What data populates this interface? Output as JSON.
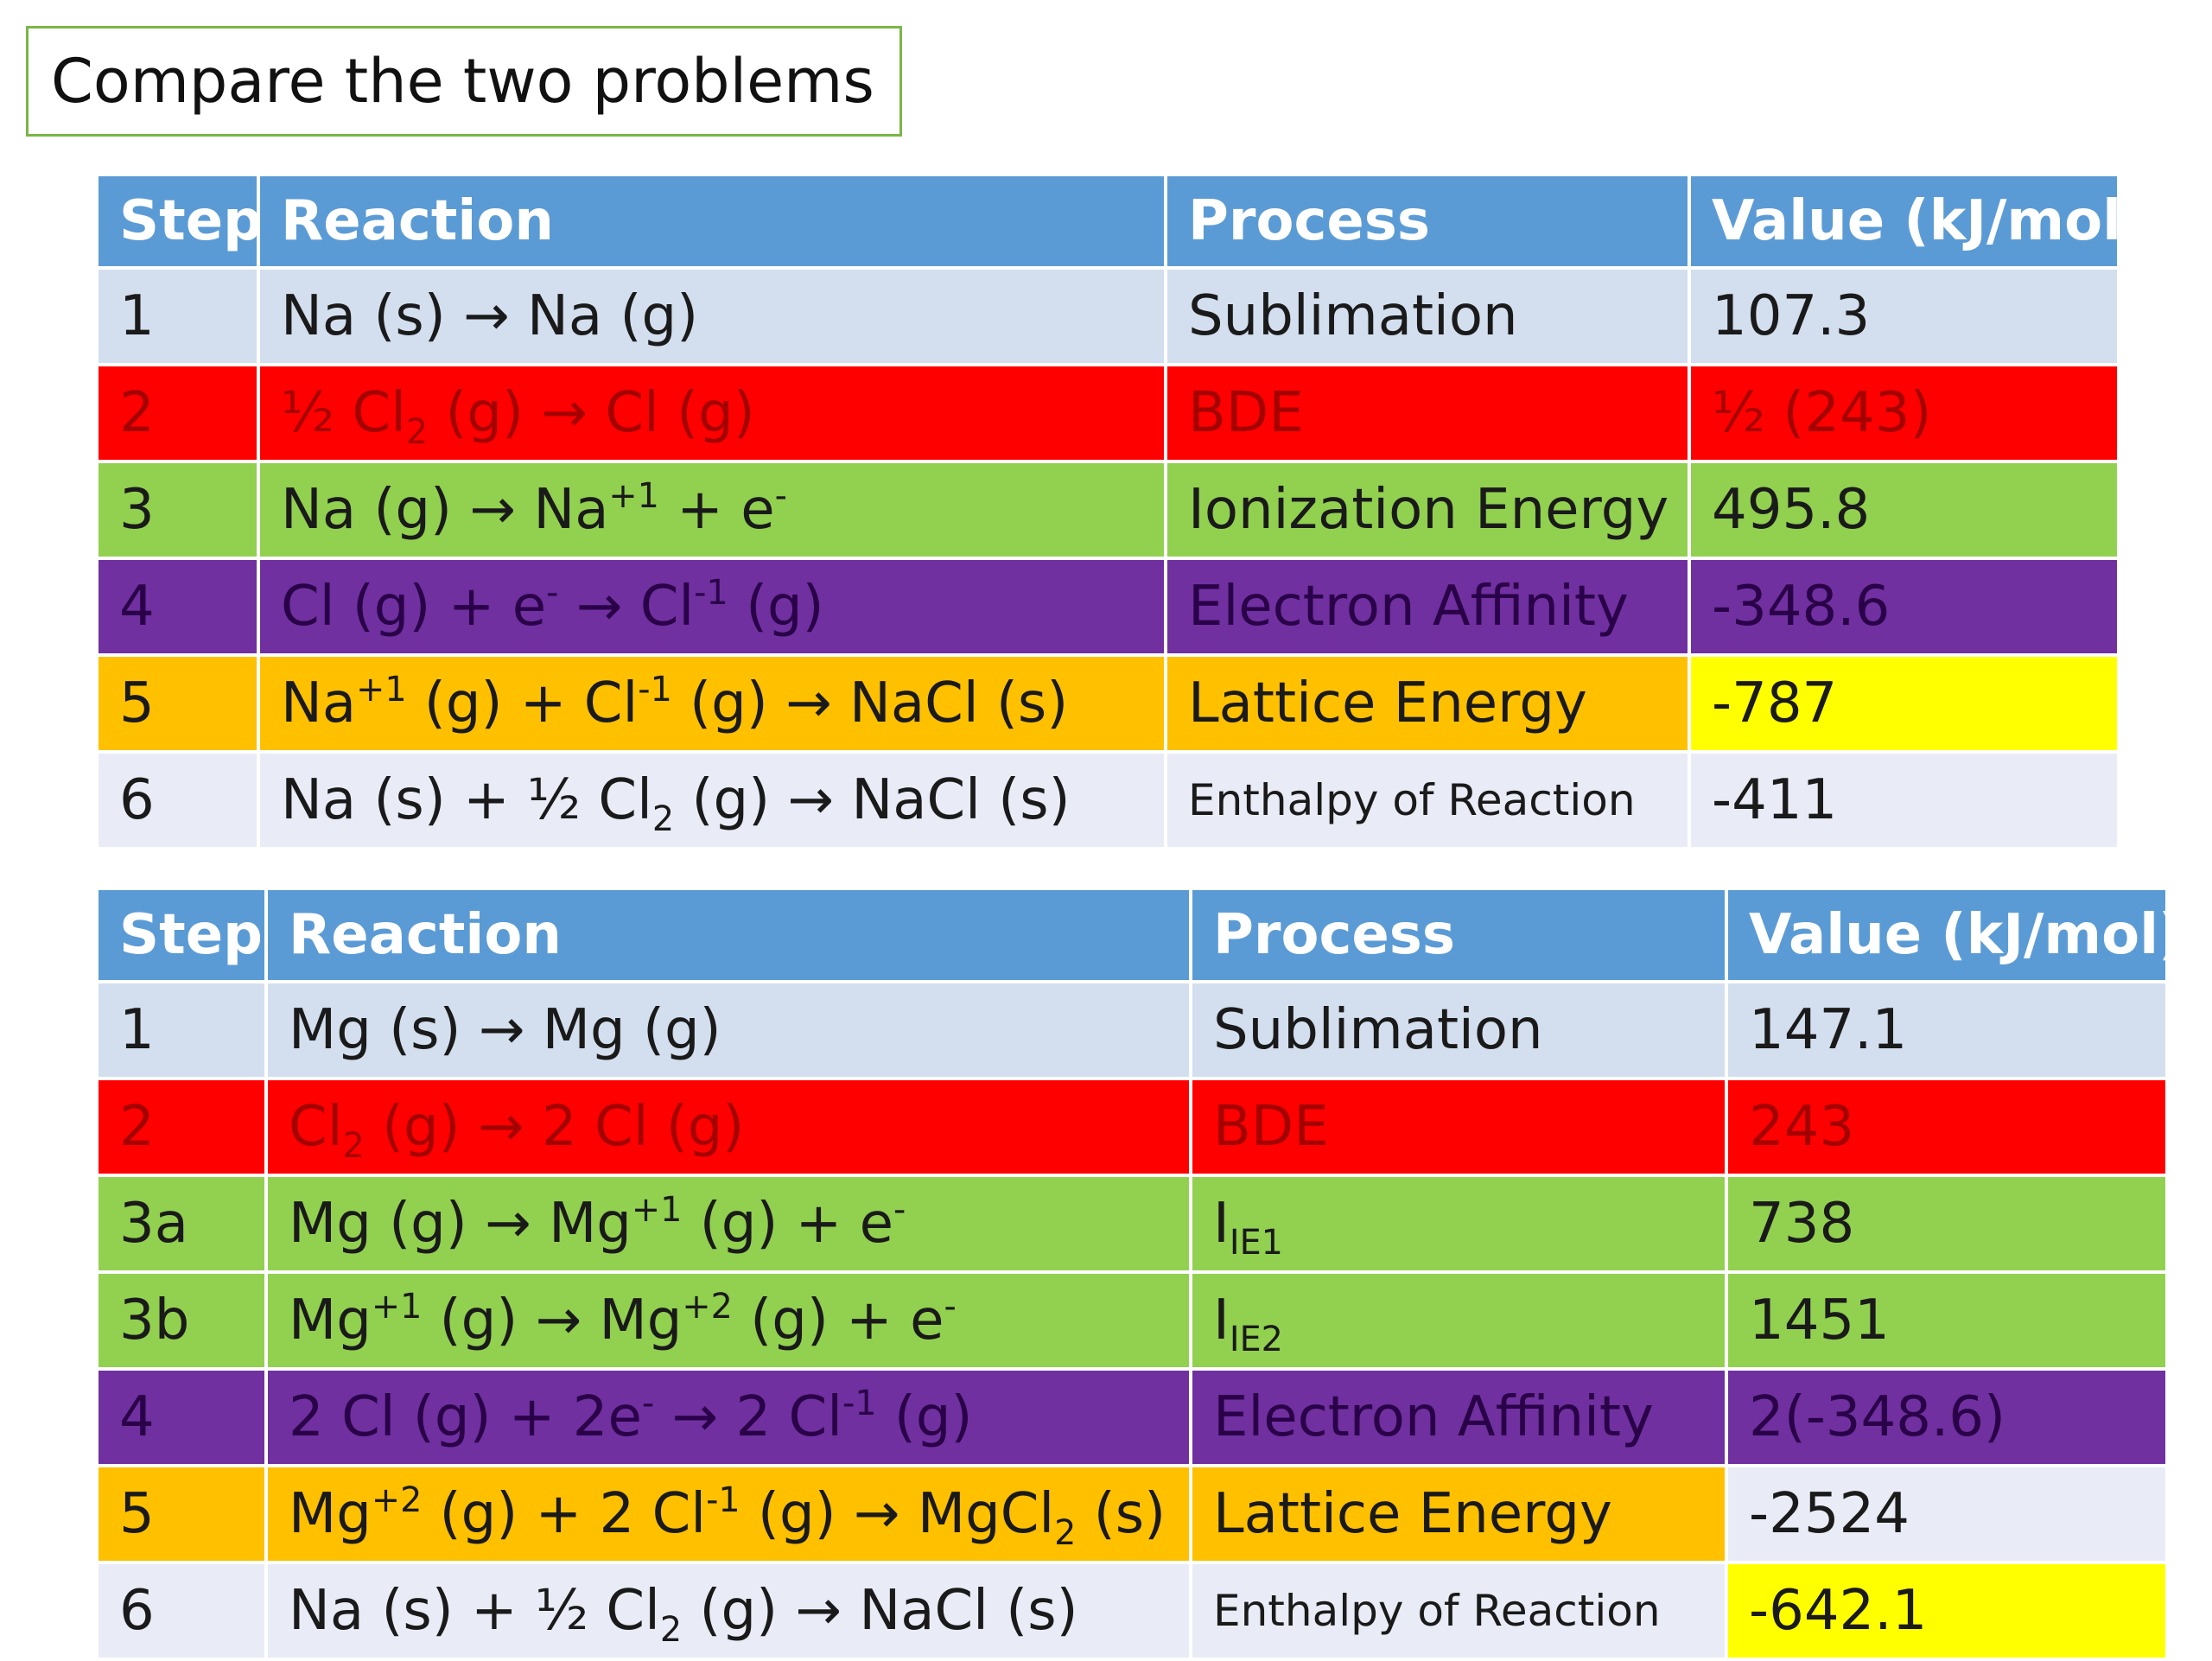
{
  "title": "Compare the two problems",
  "headers": {
    "step": "Step",
    "reaction": "Reaction",
    "process": "Process",
    "value": "Value (kJ/mol)"
  },
  "table1": {
    "rows": [
      {
        "step": "1",
        "reaction": [
          "Na (s) → Na (g)"
        ],
        "process": [
          "Sublimation"
        ],
        "value": "107.3",
        "color": "blue"
      },
      {
        "step": "2",
        "reaction": [
          "½ Cl",
          {
            "sub": "2"
          },
          " (g) → Cl (g)"
        ],
        "process": [
          "BDE"
        ],
        "value": "½ (243)",
        "color": "red"
      },
      {
        "step": "3",
        "reaction": [
          "Na (g) → Na",
          {
            "sup": "+1"
          },
          " + e",
          {
            "sup": "-"
          }
        ],
        "process": [
          "Ionization Energy"
        ],
        "value": "495.8",
        "color": "green"
      },
      {
        "step": "4",
        "reaction": [
          "Cl (g) + e",
          {
            "sup": "-"
          },
          " → Cl",
          {
            "sup": "-1"
          },
          " (g)"
        ],
        "process": [
          "Electron Affinity"
        ],
        "value": "-348.6",
        "color": "purple"
      },
      {
        "step": "5",
        "reaction": [
          " Na",
          {
            "sup": "+1"
          },
          " (g)  + Cl",
          {
            "sup": "-1"
          },
          " (g) → NaCl (s)"
        ],
        "process": [
          "Lattice Energy"
        ],
        "value": "-787",
        "color": "orange",
        "value_color": "yellow"
      },
      {
        "step": "6",
        "reaction": [
          "Na (s) + ½ Cl",
          {
            "sub": "2"
          },
          " (g) → NaCl (s)"
        ],
        "process": [
          "Enthalpy of Reaction"
        ],
        "value": "-411",
        "color": "light",
        "process_small": true
      }
    ]
  },
  "table2": {
    "rows": [
      {
        "step": "1",
        "reaction": [
          "Mg (s) → Mg (g)"
        ],
        "process": [
          "Sublimation"
        ],
        "value": "147.1",
        "color": "blue"
      },
      {
        "step": "2",
        "reaction": [
          "Cl",
          {
            "sub": "2"
          },
          " (g) → 2 Cl (g)"
        ],
        "process": [
          "BDE"
        ],
        "value": "243",
        "color": "red"
      },
      {
        "step": "3a",
        "reaction": [
          "Mg (g) → Mg",
          {
            "sup": "+1"
          },
          " (g) + e",
          {
            "sup": "-"
          }
        ],
        "process": [
          "I",
          {
            "sub": "IE1"
          }
        ],
        "value": "738",
        "color": "green"
      },
      {
        "step": "3b",
        "reaction": [
          "Mg",
          {
            "sup": "+1"
          },
          " (g) → Mg",
          {
            "sup": "+2"
          },
          " (g) + e",
          {
            "sup": "-"
          }
        ],
        "process": [
          "I",
          {
            "sub": "IE2"
          }
        ],
        "value": "1451",
        "color": "green"
      },
      {
        "step": "4",
        "reaction": [
          "2 Cl (g) + 2e",
          {
            "sup": "-"
          },
          " → 2 Cl",
          {
            "sup": "-1"
          },
          " (g)"
        ],
        "process": [
          "Electron Affinity"
        ],
        "value": "2(-348.6)",
        "color": "purple"
      },
      {
        "step": "5",
        "reaction": [
          " Mg",
          {
            "sup": "+2"
          },
          " (g)  + 2 Cl",
          {
            "sup": "-1"
          },
          " (g) → MgCl",
          {
            "sub": "2"
          },
          " (s)"
        ],
        "process": [
          "Lattice Energy"
        ],
        "value": "-2524",
        "color": "orange",
        "value_color": "light"
      },
      {
        "step": "6",
        "reaction": [
          "Na (s) + ½ Cl",
          {
            "sub": "2"
          },
          " (g) → NaCl (s)"
        ],
        "process": [
          "Enthalpy of Reaction"
        ],
        "value": "-642.1",
        "color": "light",
        "value_color": "yellow",
        "process_small": true
      }
    ]
  }
}
